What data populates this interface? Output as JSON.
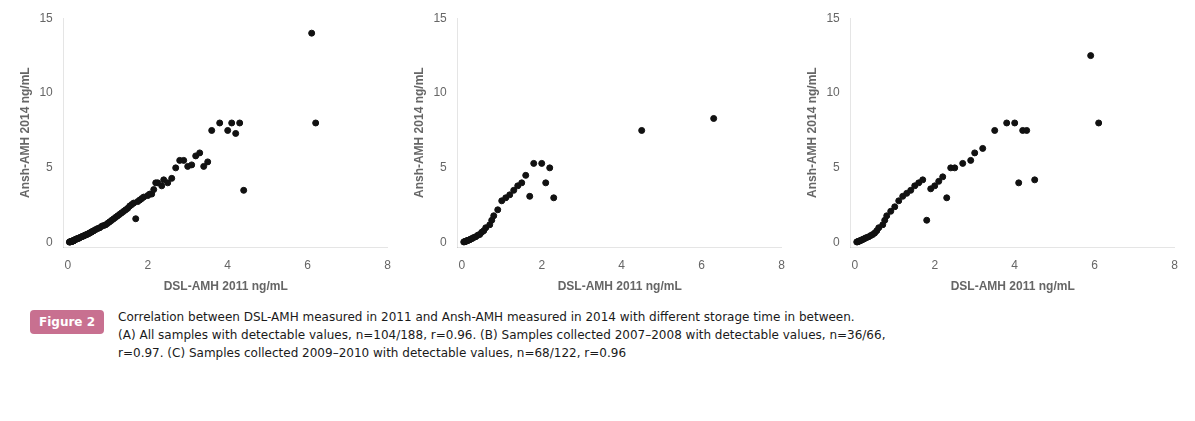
{
  "chart_data": [
    {
      "type": "scatter",
      "xlabel": "DSL-AMH 2011 ng/mL",
      "ylabel": "Ansh-AMH 2014 ng/mL",
      "color": "#111111",
      "grid": false,
      "xlim": [
        -0.1,
        8
      ],
      "ylim": [
        -0.3,
        15
      ],
      "xticks": [
        0,
        2,
        4,
        6,
        8
      ],
      "yticks": [
        0,
        5,
        10,
        15
      ],
      "x": [
        0.04,
        0.05,
        0.06,
        0.07,
        0.08,
        0.09,
        0.1,
        0.1,
        0.11,
        0.12,
        0.13,
        0.14,
        0.15,
        0.15,
        0.16,
        0.17,
        0.18,
        0.2,
        0.22,
        0.24,
        0.25,
        0.28,
        0.3,
        0.33,
        0.35,
        0.38,
        0.4,
        0.43,
        0.45,
        0.48,
        0.5,
        0.53,
        0.55,
        0.58,
        0.6,
        0.63,
        0.65,
        0.7,
        0.75,
        0.8,
        0.85,
        0.9,
        0.95,
        1.0,
        1.05,
        1.1,
        1.15,
        1.2,
        1.25,
        1.3,
        1.35,
        1.4,
        1.45,
        1.5,
        1.55,
        1.6,
        1.65,
        1.7,
        1.75,
        1.8,
        1.85,
        1.9,
        2.0,
        2.05,
        2.1,
        2.15,
        2.2,
        2.25,
        2.35,
        2.4,
        2.5,
        2.6,
        2.7,
        2.8,
        2.9,
        3.0,
        3.1,
        3.2,
        3.3,
        3.4,
        3.5,
        3.6,
        3.8,
        4.0,
        4.1,
        4.2,
        4.3,
        4.4,
        6.1,
        6.2
      ],
      "values": [
        0.04,
        0.05,
        0.06,
        0.07,
        0.08,
        0.08,
        0.08,
        0.1,
        0.11,
        0.1,
        0.12,
        0.12,
        0.14,
        0.17,
        0.16,
        0.17,
        0.2,
        0.22,
        0.25,
        0.27,
        0.28,
        0.3,
        0.34,
        0.38,
        0.4,
        0.44,
        0.45,
        0.5,
        0.52,
        0.55,
        0.58,
        0.62,
        0.65,
        0.7,
        0.72,
        0.78,
        0.8,
        0.88,
        0.95,
        1.0,
        1.1,
        1.15,
        1.2,
        1.3,
        1.4,
        1.5,
        1.6,
        1.7,
        1.8,
        1.9,
        2.0,
        2.1,
        2.2,
        2.3,
        2.45,
        2.55,
        2.65,
        1.6,
        2.75,
        2.85,
        2.95,
        3.05,
        3.15,
        3.25,
        3.25,
        3.55,
        4.0,
        4.0,
        3.8,
        4.2,
        4.0,
        4.3,
        5.0,
        5.5,
        5.5,
        5.1,
        5.2,
        5.8,
        6.0,
        5.1,
        5.4,
        7.5,
        8.0,
        7.5,
        8.0,
        7.3,
        8.0,
        3.5,
        14.0,
        8.0
      ]
    },
    {
      "type": "scatter",
      "xlabel": "DSL-AMH 2011 ng/mL",
      "ylabel": "Ansh-AMH 2014 ng/mL",
      "color": "#111111",
      "grid": false,
      "xlim": [
        -0.1,
        8
      ],
      "ylim": [
        -0.3,
        15
      ],
      "xticks": [
        0,
        2,
        4,
        6,
        8
      ],
      "yticks": [
        0,
        5,
        10,
        15
      ],
      "x": [
        0.05,
        0.07,
        0.09,
        0.1,
        0.12,
        0.14,
        0.16,
        0.18,
        0.2,
        0.23,
        0.26,
        0.3,
        0.35,
        0.4,
        0.45,
        0.5,
        0.55,
        0.6,
        0.7,
        0.75,
        0.8,
        0.9,
        1.0,
        1.1,
        1.2,
        1.3,
        1.4,
        1.5,
        1.6,
        1.7,
        1.8,
        2.0,
        2.1,
        2.2,
        2.3,
        4.5,
        6.3
      ],
      "values": [
        0.05,
        0.07,
        0.08,
        0.1,
        0.12,
        0.14,
        0.16,
        0.18,
        0.2,
        0.25,
        0.28,
        0.35,
        0.4,
        0.5,
        0.55,
        0.7,
        0.8,
        1.0,
        1.2,
        1.5,
        1.8,
        2.2,
        2.8,
        3.0,
        3.2,
        3.5,
        3.8,
        4.0,
        4.5,
        3.1,
        5.3,
        5.3,
        4.0,
        5.0,
        3.0,
        7.5,
        8.3
      ]
    },
    {
      "type": "scatter",
      "xlabel": "DSL-AMH 2011 ng/mL",
      "ylabel": "Ansh-AMH 2014 ng/mL",
      "color": "#111111",
      "grid": false,
      "xlim": [
        -0.1,
        8
      ],
      "ylim": [
        -0.3,
        15
      ],
      "xticks": [
        0,
        2,
        4,
        6,
        8
      ],
      "yticks": [
        0,
        5,
        10,
        15
      ],
      "x": [
        0.05,
        0.07,
        0.09,
        0.1,
        0.12,
        0.15,
        0.17,
        0.2,
        0.23,
        0.26,
        0.3,
        0.35,
        0.4,
        0.45,
        0.5,
        0.55,
        0.6,
        0.7,
        0.75,
        0.8,
        0.9,
        1.0,
        1.1,
        1.2,
        1.3,
        1.4,
        1.5,
        1.6,
        1.7,
        1.8,
        1.9,
        2.0,
        2.1,
        2.2,
        2.3,
        2.4,
        2.5,
        2.7,
        2.9,
        3.0,
        3.2,
        3.5,
        3.8,
        4.0,
        4.1,
        4.2,
        4.3,
        4.5,
        5.9,
        6.1
      ],
      "values": [
        0.05,
        0.06,
        0.08,
        0.1,
        0.12,
        0.15,
        0.18,
        0.22,
        0.25,
        0.3,
        0.35,
        0.4,
        0.48,
        0.55,
        0.65,
        0.8,
        1.0,
        1.2,
        1.5,
        1.8,
        2.1,
        2.4,
        2.8,
        3.1,
        3.3,
        3.5,
        3.8,
        4.0,
        4.2,
        1.5,
        3.6,
        3.8,
        4.1,
        4.4,
        3.0,
        5.0,
        5.0,
        5.3,
        5.5,
        6.0,
        6.3,
        7.5,
        8.0,
        8.0,
        4.0,
        7.5,
        7.5,
        4.2,
        12.5,
        8.0
      ]
    }
  ],
  "figure_label": "Figure 2",
  "caption": [
    "Correlation between DSL-AMH measured in 2011 and Ansh-AMH measured in 2014 with different storage time in between.",
    "(A) All samples with detectable values, n=104/188, r=0.96. (B) Samples collected 2007–2008 with detectable values, n=36/66,",
    "r=0.97. (C) Samples collected 2009–2010 with detectable values, n=68/122, r=0.96"
  ]
}
